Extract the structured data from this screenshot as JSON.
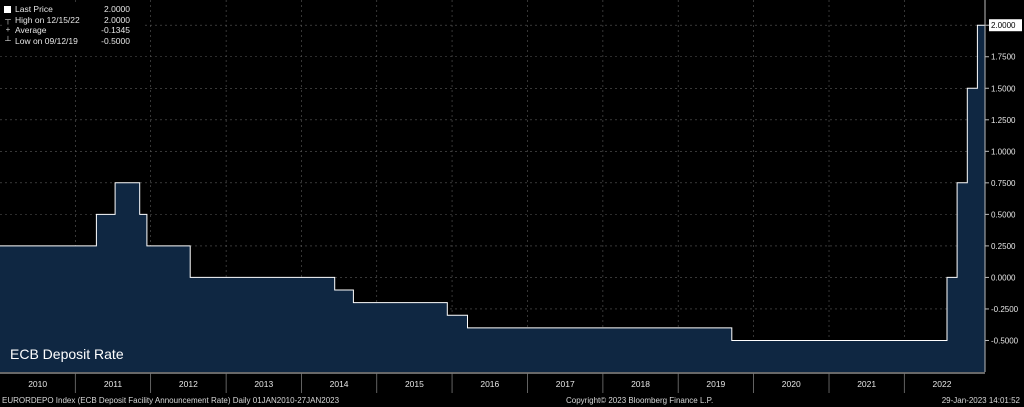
{
  "chart_data": {
    "type": "line",
    "style": "step-area",
    "title": "ECB Deposit Rate",
    "series": [
      {
        "name": "Last Price",
        "dates": [
          "2010-01-01",
          "2011-04-13",
          "2011-07-13",
          "2011-11-09",
          "2011-12-14",
          "2012-07-11",
          "2013-11-13",
          "2014-06-11",
          "2014-09-10",
          "2015-12-09",
          "2016-03-16",
          "2019-09-18",
          "2022-07-27",
          "2022-09-14",
          "2022-11-02",
          "2022-12-21",
          "2023-01-27"
        ],
        "values": [
          0.25,
          0.5,
          0.75,
          0.5,
          0.25,
          0.0,
          0.0,
          -0.1,
          -0.2,
          -0.3,
          -0.4,
          -0.5,
          0.0,
          0.75,
          1.5,
          2.0,
          2.0
        ]
      }
    ],
    "legend": [
      {
        "label": "Last Price",
        "value": "2.0000",
        "marker": "swatch"
      },
      {
        "label": "High on 12/15/22",
        "value": "2.0000",
        "marker": "┬"
      },
      {
        "label": "Average",
        "value": "-0.1345",
        "marker": "+"
      },
      {
        "label": "Low on 09/12/19",
        "value": "-0.5000",
        "marker": "┴"
      }
    ],
    "legend_position": "top-left",
    "xlim": [
      "2010-01-01",
      "2023-01-27"
    ],
    "ylim": [
      -0.75,
      2.2
    ],
    "x_ticks": [
      "2010",
      "2011",
      "2012",
      "2013",
      "2014",
      "2015",
      "2016",
      "2017",
      "2018",
      "2019",
      "2020",
      "2021",
      "2022"
    ],
    "y_ticks": [
      "2.0000",
      "1.7500",
      "1.5000",
      "1.2500",
      "1.0000",
      "0.7500",
      "0.5000",
      "0.2500",
      "0.0000",
      "-0.2500",
      "-0.5000"
    ],
    "last_value_label": "2.0000",
    "grid": true,
    "colors": {
      "fill": "#0f2742",
      "line": "#ffffff",
      "grid": "#5a5a5a",
      "background": "#000000"
    }
  },
  "footer": {
    "left": "EURORDEPO Index (ECB Deposit Facility Announcement Rate)  Daily 01JAN2010-27JAN2023",
    "middle": "Copyright© 2023 Bloomberg Finance L.P.",
    "right": "29-Jan-2023 14:01:52"
  }
}
